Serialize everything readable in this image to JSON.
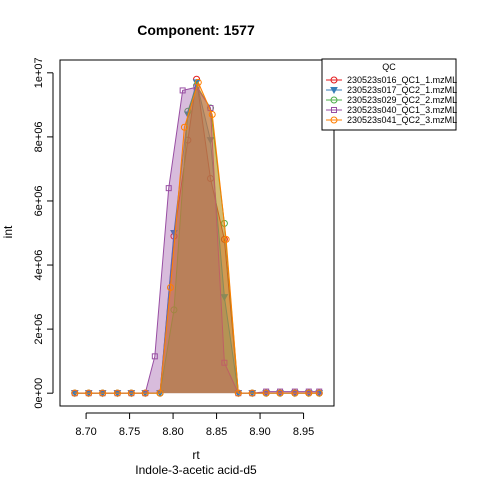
{
  "chart_data": {
    "type": "area",
    "title": "Component: 1577",
    "xlabel": "rt",
    "ylabel": "int",
    "subtitle": "Indole-3-acetic acid-d5",
    "xlim": [
      8.67,
      8.985
    ],
    "ylim": [
      -400000,
      10400000
    ],
    "x_ticks": [
      8.7,
      8.75,
      8.8,
      8.85,
      8.9,
      8.95
    ],
    "x_tick_labels": [
      "8.70",
      "8.75",
      "8.80",
      "8.85",
      "8.90",
      "8.95"
    ],
    "y_ticks": [
      0,
      2000000,
      4000000,
      6000000,
      8000000,
      10000000
    ],
    "y_tick_labels": [
      "0e+00",
      "2e+06",
      "4e+06",
      "6e+06",
      "8e+06",
      "1e+07"
    ],
    "legend": {
      "title": "QC",
      "position": "top-right"
    },
    "series": [
      {
        "name": "230523s016_QC1_1.mzML",
        "color": "#e41a1c",
        "marker": "circle",
        "x": [
          8.687,
          8.703,
          8.719,
          8.736,
          8.752,
          8.768,
          8.785,
          8.801,
          8.817,
          8.827,
          8.843,
          8.859,
          8.875,
          8.891,
          8.907,
          8.923,
          8.94,
          8.956,
          8.968
        ],
        "y": [
          0,
          0,
          0,
          0,
          0,
          0,
          0,
          4900000,
          7900000,
          9800000,
          6700000,
          4800000,
          0,
          0,
          0,
          0,
          0,
          0,
          0
        ]
      },
      {
        "name": "230523s017_QC2_1.mzML",
        "color": "#377eb8",
        "marker": "triangle-down",
        "x": [
          8.687,
          8.703,
          8.719,
          8.736,
          8.752,
          8.768,
          8.785,
          8.801,
          8.817,
          8.827,
          8.843,
          8.859,
          8.875,
          8.891,
          8.907,
          8.923,
          8.94,
          8.956,
          8.968
        ],
        "y": [
          0,
          0,
          0,
          0,
          0,
          0,
          0,
          5000000,
          8700000,
          9700000,
          7900000,
          3000000,
          0,
          0,
          0,
          0,
          0,
          0,
          0
        ]
      },
      {
        "name": "230523s029_QC2_2.mzML",
        "color": "#4daf4a",
        "marker": "circle",
        "x": [
          8.687,
          8.703,
          8.719,
          8.736,
          8.752,
          8.768,
          8.785,
          8.801,
          8.817,
          8.827,
          8.843,
          8.859,
          8.875,
          8.891,
          8.907,
          8.923,
          8.94,
          8.956,
          8.968
        ],
        "y": [
          0,
          0,
          0,
          0,
          0,
          0,
          0,
          2600000,
          8800000,
          9600000,
          8900000,
          5300000,
          0,
          0,
          0,
          0,
          0,
          0,
          0
        ]
      },
      {
        "name": "230523s040_QC1_3.mzML",
        "color": "#984ea3",
        "marker": "square",
        "x": [
          8.687,
          8.703,
          8.719,
          8.736,
          8.752,
          8.768,
          8.779,
          8.795,
          8.811,
          8.827,
          8.843,
          8.859,
          8.875,
          8.891,
          8.907,
          8.923,
          8.94,
          8.956,
          8.968
        ],
        "y": [
          0,
          0,
          0,
          0,
          0,
          0,
          1150000,
          6400000,
          9450000,
          9550000,
          8900000,
          950000,
          0,
          0,
          50000,
          50000,
          50000,
          50000,
          50000
        ]
      },
      {
        "name": "230523s041_QC2_3.mzML",
        "color": "#ff7f00",
        "marker": "circle",
        "x": [
          8.687,
          8.703,
          8.719,
          8.736,
          8.752,
          8.768,
          8.785,
          8.797,
          8.813,
          8.829,
          8.845,
          8.861,
          8.875,
          8.891,
          8.907,
          8.923,
          8.94,
          8.956,
          8.968
        ],
        "y": [
          0,
          0,
          0,
          0,
          0,
          0,
          0,
          3300000,
          8300000,
          9700000,
          8700000,
          4800000,
          0,
          0,
          0,
          0,
          0,
          0,
          0
        ]
      }
    ]
  }
}
